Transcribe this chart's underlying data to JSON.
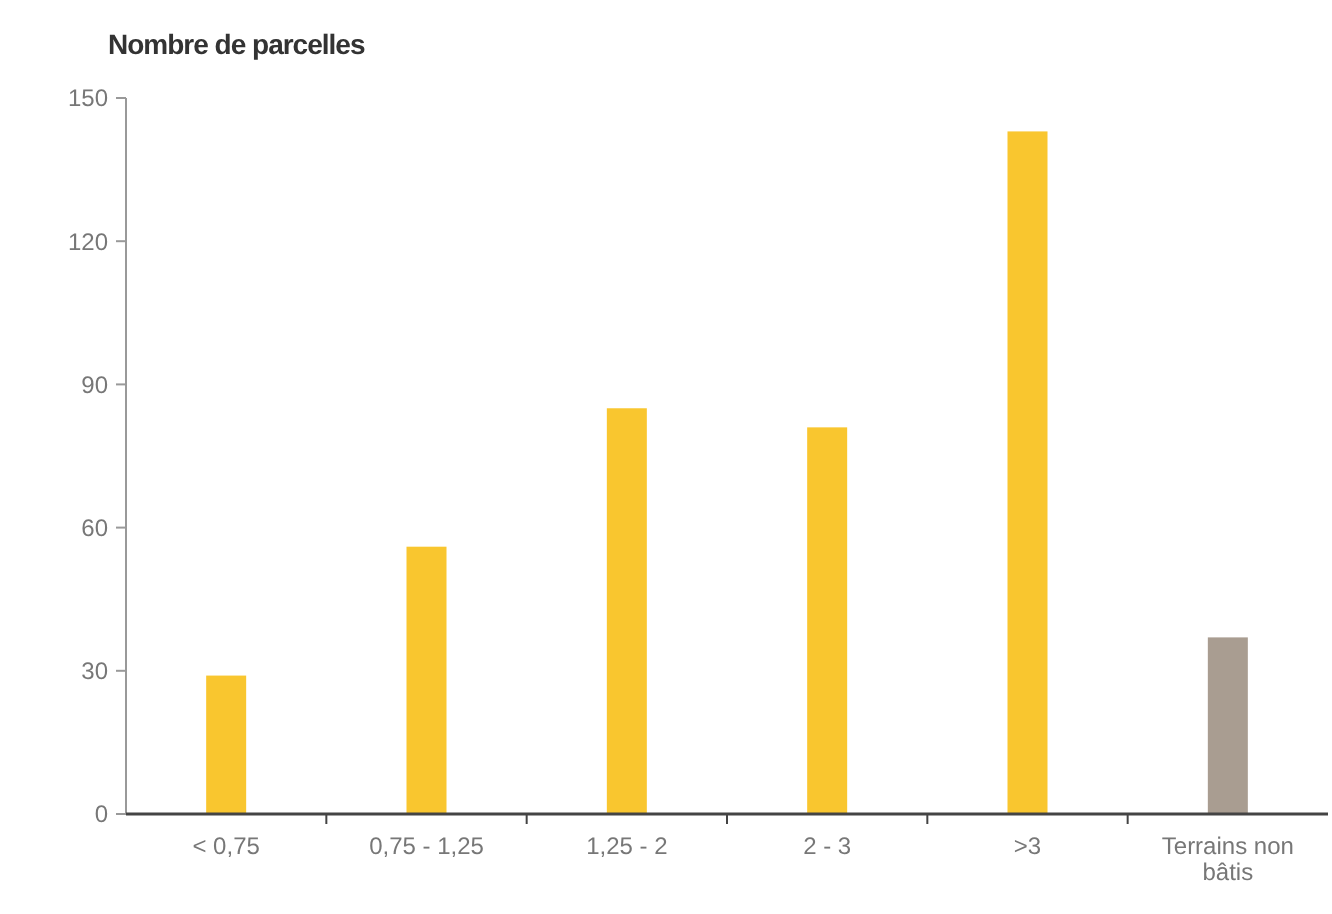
{
  "chart_data": {
    "type": "bar",
    "title": "Nombre de parcelles",
    "categories": [
      "< 0,75",
      "0,75 - 1,25",
      "1,25 - 2",
      "2 - 3",
      ">3",
      "Terrains non bâtis"
    ],
    "values": [
      29,
      56,
      85,
      81,
      143,
      37
    ],
    "colors": [
      "#f9c62f",
      "#f9c62f",
      "#f9c62f",
      "#f9c62f",
      "#f9c62f",
      "#a99d91"
    ],
    "ylim": [
      0,
      150
    ],
    "yticks": [
      0,
      30,
      60,
      90,
      120,
      150
    ],
    "grid": false
  }
}
